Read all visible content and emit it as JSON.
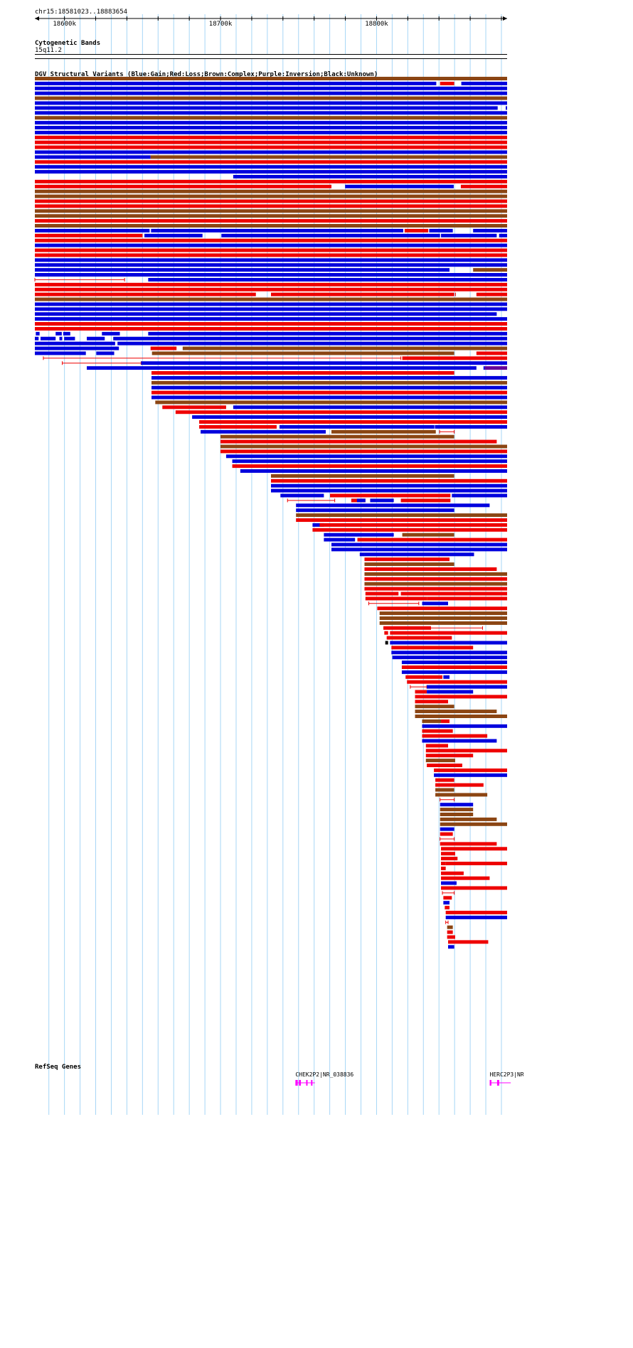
{
  "location": "chr15:18581023..18883654",
  "ruler": {
    "ticks": [
      {
        "pos": 18600000,
        "label": "18600k"
      },
      {
        "pos": 18700000,
        "label": "18700k"
      },
      {
        "pos": 18800000,
        "label": "18800k"
      }
    ]
  },
  "view": {
    "start": 18581023,
    "end": 18883654
  },
  "tracks": {
    "cytoband": {
      "title": "Cytogenetic Bands",
      "band": "15q11.2"
    },
    "dgv": {
      "title": "DGV Structural Variants (Blue:Gain;Red:Loss;Brown:Complex;Purple:Inversion;Black:Unknown)"
    },
    "refseq": {
      "title": "RefSeq Genes"
    }
  },
  "colors": {
    "gain": "#0000dd",
    "loss": "#ee0000",
    "complex": "#8b4513",
    "inversion": "#660099",
    "unknown": "#000000",
    "grid": "#a6d6f6",
    "gene": "#ff00ff"
  },
  "genes": [
    {
      "label": "CHEK2P2|NR_038836",
      "start": 18748000,
      "end": 18760500
    },
    {
      "label": "HERC2P3|NR_",
      "start": 18872500,
      "end": 18886000
    }
  ],
  "dgv_rows": [
    [
      "C",
      "0.000-1.000"
    ],
    [
      "B",
      "0.000-0.850",
      "L",
      "0.858-0.888",
      "B",
      "0.903-1.000"
    ],
    [
      "B",
      "0.000-1.000"
    ],
    [
      "B",
      "0.000-1.000"
    ],
    [
      "C",
      "0.000-1.000"
    ],
    [
      "B",
      "0.000-1.000"
    ],
    [
      "B",
      "0.000-0.980",
      "B",
      "0.997-1.000"
    ],
    [
      "B",
      "0.000-1.000"
    ],
    [
      "C",
      "0.000-1.000"
    ],
    [
      "B",
      "0.000-1.000"
    ],
    [
      "B",
      "0.000-1.000"
    ],
    [
      "B",
      "0.000-1.000"
    ],
    [
      "L",
      "0.000-1.000"
    ],
    [
      "L",
      "0.000-1.000"
    ],
    [
      "L",
      "0.000-1.000"
    ],
    [
      "B",
      "0.000-1.000"
    ],
    [
      "B",
      "0.000-0.245",
      "C",
      "0.245-1.000"
    ],
    [
      "L",
      "0.000-1.000"
    ],
    [
      "B",
      "0.000-1.000"
    ],
    [
      "B",
      "0.000-1.000"
    ],
    [
      "B",
      "0.420-1.000"
    ],
    [
      "L",
      "0.000-1.000"
    ],
    [
      "L",
      "0.000-0.628",
      "B",
      "0.657-0.887",
      "L",
      "0.902-1.000"
    ],
    [
      "C",
      "0.000-1.000"
    ],
    [
      "C",
      "0.000-1.000"
    ],
    [
      "L",
      "0.000-1.000"
    ],
    [
      "L",
      "0.000-1.000"
    ],
    [
      "C",
      "0.000-1.000"
    ],
    [
      "C",
      "0.000-1.000"
    ],
    [
      "L",
      "0.000-1.000"
    ],
    [
      "C",
      "0.000-1.000"
    ],
    [
      "B",
      "0.000-0.243",
      "B",
      "0.246-0.780",
      "L",
      "0.783-0.833",
      "B",
      "0.835-0.885",
      "B",
      "0.928-1.000"
    ],
    [
      "L",
      "0.000-0.228",
      "B",
      "0.232-0.355",
      "B",
      "0.395-0.858",
      "B",
      "0.860-0.978",
      "B",
      "0.983-1.000"
    ],
    [
      "L",
      "0.000-1.000"
    ],
    [
      "B",
      "0.000-1.000"
    ],
    [
      "L",
      "0.000-1.000"
    ],
    [
      "L",
      "0.000-1.000"
    ],
    [
      "B",
      "0.000-1.000"
    ],
    [
      "B",
      "0.000-1.000"
    ],
    [
      "B",
      "0.000-0.878",
      "C",
      "0.928-1.000"
    ],
    [
      "B",
      "0.000-1.000"
    ],
    [
      "t",
      "0.000-0.190",
      "B",
      "0.240-1.000"
    ],
    [
      "L",
      "0.000-1.000"
    ],
    [
      "L",
      "0.000-1.000"
    ],
    [
      "L",
      "0.000-0.468",
      "L",
      "0.500-0.888",
      "L",
      "0.890-0.887",
      "L",
      "0.935-1.000"
    ],
    [
      "C",
      "0.000-1.000"
    ],
    [
      "B",
      "0.000-1.000"
    ],
    [
      "B",
      "0.000-1.000"
    ],
    [
      "B",
      "0.000-0.978"
    ],
    [
      "B",
      "0.000-1.000"
    ],
    [
      "L",
      "0.000-1.000"
    ],
    [
      "L",
      "0.000-1.000"
    ],
    [
      "B",
      "0.002-0.010",
      "B",
      "0.044-0.057",
      "B",
      "0.060-0.075",
      "B",
      "0.142-0.180",
      "B",
      "0.240-1.000"
    ],
    [
      "B",
      "0.000-0.008",
      "B",
      "0.012-0.044",
      "B",
      "0.052-0.058",
      "B",
      "0.062-0.085",
      "B",
      "0.110-0.148",
      "B",
      "0.166-1.000"
    ],
    [
      "B",
      "0.000-0.170",
      "B",
      "0.175-1.000"
    ],
    [
      "B",
      "0.000-0.178",
      "L",
      "0.245-0.300",
      "C",
      "0.313-1.000"
    ],
    [
      "B",
      "0.000-0.108",
      "B",
      "0.130-0.168",
      "C",
      "0.248-0.888",
      "L",
      "0.935-1.000"
    ],
    [
      "t",
      "0.018-0.775",
      "L",
      "0.778-1.000"
    ],
    [
      "t",
      "0.058-0.225",
      "B",
      "0.225-1.000"
    ],
    [
      "B",
      "0.110-0.935",
      "B",
      "0.950-0.953",
      "P",
      "0.953-1.000"
    ],
    [
      "L",
      "0.247-0.888"
    ],
    [
      "B",
      "0.247-1.000"
    ],
    [
      "C",
      "0.247-1.000"
    ],
    [
      "B",
      "0.247-1.000"
    ],
    [
      "L",
      "0.247-1.000"
    ],
    [
      "B",
      "0.247-1.000"
    ],
    [
      "C",
      "0.255-1.000"
    ],
    [
      "L",
      "0.270-0.405",
      "B",
      "0.420-1.000"
    ],
    [
      "L",
      "0.298-1.000"
    ],
    [
      "B",
      "0.333-1.000"
    ],
    [
      "L",
      "0.348-1.000"
    ],
    [
      "L",
      "0.348-0.512",
      "B",
      "0.518-0.846",
      "B",
      "0.847-1.000"
    ],
    [
      "B",
      "0.351-0.616",
      "C",
      "0.628-0.849",
      "t",
      "0.857-0.888"
    ],
    [
      "C",
      "0.393-0.888"
    ],
    [
      "L",
      "0.393-0.978"
    ],
    [
      "C",
      "0.393-1.000"
    ],
    [
      "L",
      "0.393-1.000"
    ],
    [
      "B",
      "0.405-1.000"
    ],
    [
      "B",
      "0.418-1.000"
    ],
    [
      "L",
      "0.418-1.000"
    ],
    [
      "B",
      "0.435-1.000"
    ],
    [
      "C",
      "0.500-0.888"
    ],
    [
      "L",
      "0.500-1.000"
    ],
    [
      "B",
      "0.500-1.000"
    ],
    [
      "B",
      "0.500-1.000"
    ],
    [
      "B",
      "0.520-0.612",
      "L",
      "0.625-0.880",
      "B",
      "0.883-1.000"
    ],
    [
      "t",
      "0.535-0.635",
      "L",
      "0.670-0.700",
      "B",
      "0.682-0.700",
      "B",
      "0.710-0.760",
      "L",
      "0.775-0.880"
    ],
    [
      "B",
      "0.553-0.963"
    ],
    [
      "B",
      "0.553-0.888"
    ],
    [
      "C",
      "0.553-1.000"
    ],
    [
      "L",
      "0.553-1.000"
    ],
    [
      "B",
      "0.588-0.612",
      "L",
      "0.603-1.000"
    ],
    [
      "L",
      "0.588-1.000"
    ],
    [
      "B",
      "0.612-0.760",
      "C",
      "0.778-0.888"
    ],
    [
      "B",
      "0.612-0.678",
      "L",
      "0.683-1.000"
    ],
    [
      "B",
      "0.628-1.000"
    ],
    [
      "B",
      "0.628-1.000"
    ],
    [
      "B",
      "0.688-0.698",
      "B",
      "0.698-0.930"
    ],
    [
      "L",
      "0.698-0.878"
    ],
    [
      "C",
      "0.698-0.888"
    ],
    [
      "L",
      "0.698-0.978"
    ],
    [
      "C",
      "0.698-1.000"
    ],
    [
      "L",
      "0.698-1.000"
    ],
    [
      "C",
      "0.698-1.000"
    ],
    [
      "L",
      "0.698-1.000"
    ],
    [
      "L",
      "0.700-0.770",
      "L",
      "0.775-1.000"
    ],
    [
      "L",
      "0.700-0.830",
      "L",
      "0.830-1.000"
    ],
    [
      "t",
      "0.707-0.813",
      "B",
      "0.820-0.875"
    ],
    [
      "L",
      "0.725-1.000"
    ],
    [
      "C",
      "0.730-1.000"
    ],
    [
      "C",
      "0.730-1.000"
    ],
    [
      "C",
      "0.730-1.000"
    ],
    [
      "L",
      "0.738-0.838",
      "t",
      "0.838-0.948"
    ],
    [
      "L",
      "0.740-0.748",
      "L",
      "0.752-1.000"
    ],
    [
      "L",
      "0.745-0.883"
    ],
    [
      "U",
      "0.742-0.748",
      "B",
      "0.752-1.000"
    ],
    [
      "L",
      "0.755-0.928"
    ],
    [
      "B",
      "0.755-1.000"
    ],
    [
      "B",
      "0.757-1.000"
    ],
    [
      "B",
      "0.777-1.000"
    ],
    [
      "L",
      "0.777-1.000"
    ],
    [
      "B",
      "0.777-1.000"
    ],
    [
      "L",
      "0.785-0.863",
      "B",
      "0.865-0.878"
    ],
    [
      "L",
      "0.788-1.000"
    ],
    [
      "t",
      "0.795-0.830",
      "B",
      "0.830-1.000"
    ],
    [
      "L",
      "0.805-0.830",
      "B",
      "0.830-0.928"
    ],
    [
      "L",
      "0.805-1.000"
    ],
    [
      "L",
      "0.805-0.875"
    ],
    [
      "C",
      "0.805-0.888"
    ],
    [
      "C",
      "0.805-0.978"
    ],
    [
      "C",
      "0.805-1.000"
    ],
    [
      "C",
      "0.820-0.860",
      "L",
      "0.860-0.878"
    ],
    [
      "B",
      "0.820-1.000"
    ],
    [
      "L",
      "0.820-0.885"
    ],
    [
      "L",
      "0.820-0.958"
    ],
    [
      "B",
      "0.820-0.978"
    ],
    [
      "L",
      "0.828-0.875"
    ],
    [
      "L",
      "0.828-1.000"
    ],
    [
      "L",
      "0.828-0.928"
    ],
    [
      "C",
      "0.828-0.890"
    ],
    [
      "L",
      "0.830-0.905"
    ],
    [
      "L",
      "0.845-1.000"
    ],
    [
      "B",
      "0.845-1.000"
    ],
    [
      "L",
      "0.848-0.888"
    ],
    [
      "L",
      "0.848-0.950"
    ],
    [
      "C",
      "0.848-0.888"
    ],
    [
      "C",
      "0.848-0.958"
    ],
    [
      "t",
      "0.858-0.888"
    ],
    [
      "B",
      "0.858-0.928"
    ],
    [
      "C",
      "0.858-0.928"
    ],
    [
      "C",
      "0.858-0.928"
    ],
    [
      "C",
      "0.858-0.978"
    ],
    [
      "C",
      "0.858-1.000"
    ],
    [
      "B",
      "0.858-0.888"
    ],
    [
      "L",
      "0.858-0.885"
    ],
    [
      "t",
      "0.858-0.888"
    ],
    [
      "L",
      "0.858-0.978"
    ],
    [
      "L",
      "0.860-1.000"
    ],
    [
      "L",
      "0.860-0.890"
    ],
    [
      "L",
      "0.860-0.895"
    ],
    [
      "L",
      "0.860-0.870",
      "L",
      "0.870-1.000"
    ],
    [
      "L",
      "0.860-0.870"
    ],
    [
      "L",
      "0.860-0.908"
    ],
    [
      "L",
      "0.860-0.963"
    ],
    [
      "B",
      "0.860-0.893"
    ],
    [
      "L",
      "0.860-1.000"
    ],
    [
      "t",
      "0.863-0.888"
    ],
    [
      "L",
      "0.865-0.883"
    ],
    [
      "B",
      "0.865-0.878"
    ],
    [
      "L",
      "0.868-0.878"
    ],
    [
      "L",
      "0.870-0.875",
      "L",
      "0.875-1.000"
    ],
    [
      "B",
      "0.870-1.000"
    ],
    [
      "t",
      "0.870-0.875"
    ],
    [
      "C",
      "0.873-0.885"
    ],
    [
      "L",
      "0.873-0.885"
    ],
    [
      "L",
      "0.873-0.890"
    ],
    [
      "L",
      "0.875-0.960"
    ],
    [
      "B",
      "0.875-0.888"
    ]
  ]
}
